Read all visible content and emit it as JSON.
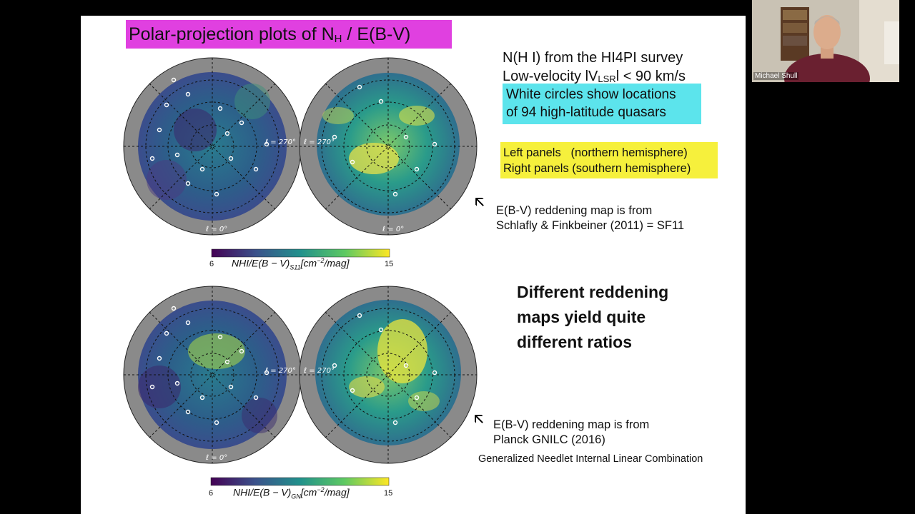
{
  "slide": {
    "title": {
      "main": "Polar-projection plots of N",
      "sub": "H",
      "after": " / E(B-V)"
    },
    "survey_line1": "N(H I) from the HI4PI survey",
    "survey_line2_pre": "Low-velocity lV",
    "survey_line2_sub": "LSR",
    "survey_line2_post": "l < 90 km/s",
    "cyan_box": [
      "White circles show locations",
      "of 94 high-latitude quasars"
    ],
    "yellow_box": [
      "Left panels   (northern hemisphere)",
      "Right panels (southern hemisphere)"
    ],
    "note_sf11": [
      "E(B-V) reddening map is from",
      "Schlafly & Finkbeiner (2011) = SF11"
    ],
    "note_planck": [
      "E(B-V) reddening map is from",
      "Planck GNILC (2016)"
    ],
    "gnilc_full": "Generalized Needlet Internal Linear Combination",
    "big_text": [
      "Different reddening",
      "maps yield quite",
      "different ratios"
    ],
    "map_labels": {
      "l270": "ℓ = 270°",
      "l0": "ℓ = 0°"
    },
    "colorbar_top": {
      "min": "6",
      "max": "15",
      "label_main": "NHI/E(B − V)",
      "label_sub": "S11",
      "label_post": "[cm",
      "label_exp": "−2",
      "label_end": "/mag]"
    },
    "colorbar_bottom": {
      "min": "6",
      "max": "15",
      "label_main": "NHI/E(B − V)",
      "label_sub": "GN",
      "label_post": "[cm",
      "label_exp": "−2",
      "label_end": "/mag]"
    },
    "colors": {
      "title_bg": "#e040e0",
      "cyan_bg": "#5ce4ec",
      "yellow_bg": "#f6f03c"
    }
  },
  "webcam": {
    "participant_name": "Michael Shull"
  }
}
